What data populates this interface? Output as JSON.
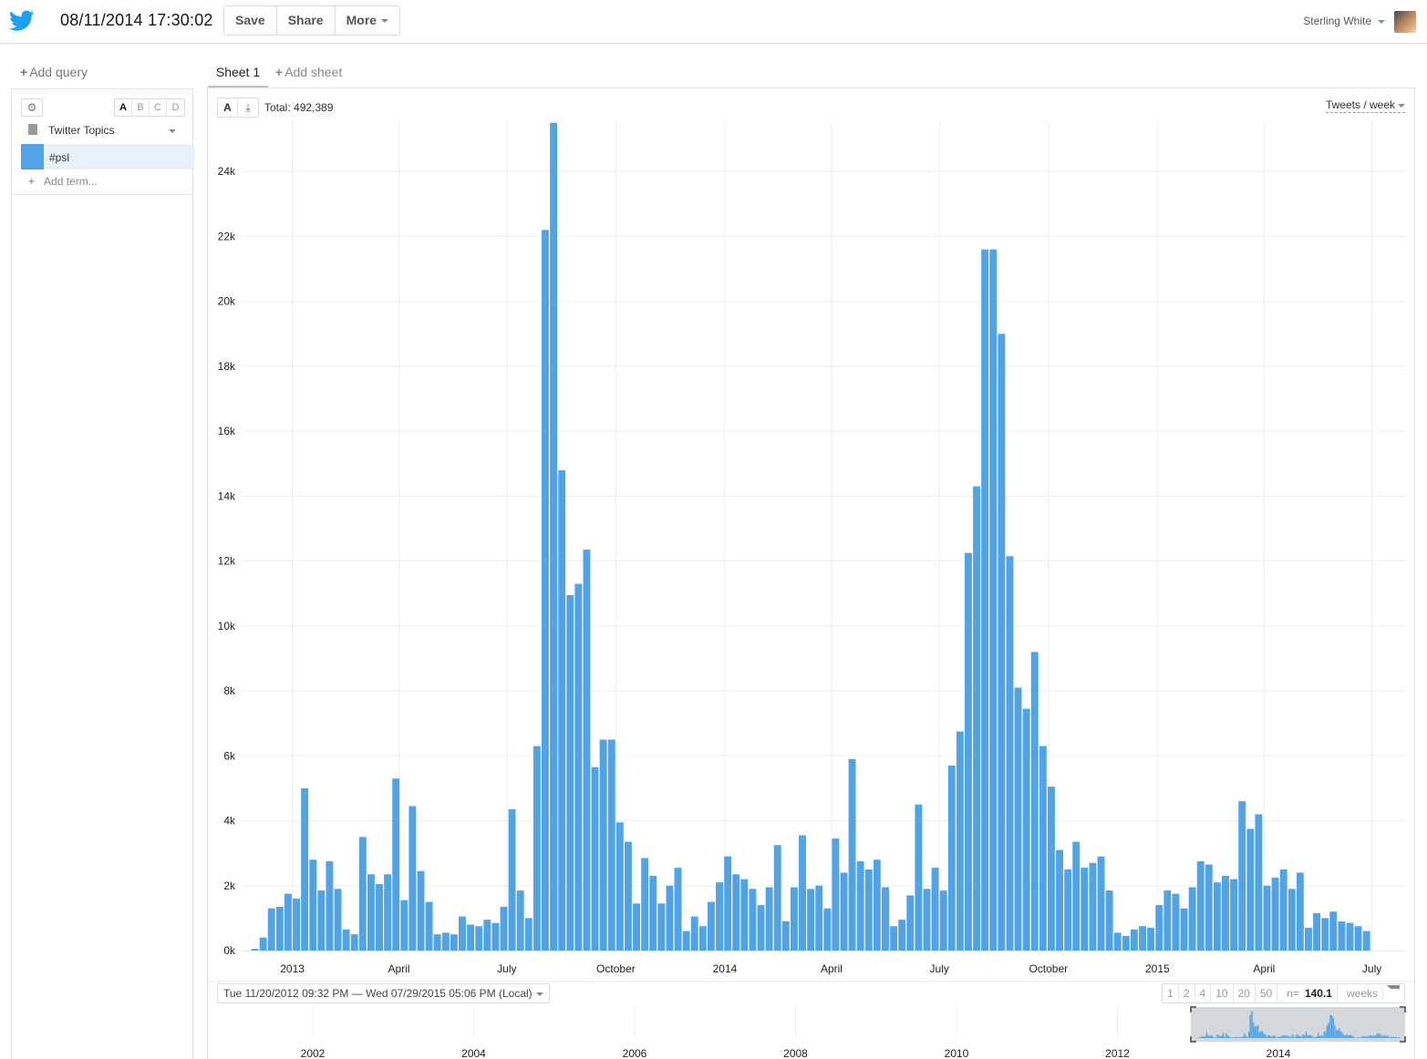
{
  "header": {
    "title": "08/11/2014 17:30:02",
    "buttons": {
      "save": "Save",
      "share": "Share",
      "more": "More"
    },
    "user_name": "Sterling White"
  },
  "sidebar": {
    "add_query": "Add query",
    "series_letters": [
      "A",
      "B",
      "C",
      "D"
    ],
    "topic": "Twitter Topics",
    "term": "#psl",
    "add_term": "Add term..."
  },
  "tabs": {
    "sheet": "Sheet 1",
    "add_sheet": "Add sheet"
  },
  "chart_header": {
    "series_letter": "A",
    "total": "Total: 492,389",
    "rate_label": "Tweets / week"
  },
  "range": {
    "label": "Tue 11/20/2012 09:32 PM — Wed 07/29/2015 05:06 PM (Local)",
    "bins": [
      "1",
      "2",
      "4",
      "10",
      "20",
      "50"
    ],
    "n_prefix": "n=",
    "n_value": "140.1",
    "unit": "weeks"
  },
  "colors": {
    "bar": "#4fa3e6",
    "accent": "#1da1f2"
  },
  "chart_data": {
    "type": "bar",
    "ylim": [
      0,
      26000
    ],
    "yticks": [
      0,
      2000,
      4000,
      6000,
      8000,
      10000,
      12000,
      14000,
      16000,
      18000,
      20000,
      22000,
      24000
    ],
    "ytick_labels": [
      "0k",
      "2k",
      "4k",
      "6k",
      "8k",
      "10k",
      "12k",
      "14k",
      "16k",
      "18k",
      "20k",
      "22k",
      "24k"
    ],
    "x_range": [
      "2012-11-20",
      "2015-07-29"
    ],
    "x_ticks": [
      {
        "date": "2013-01-01",
        "label": "2013"
      },
      {
        "date": "2013-04-01",
        "label": "April"
      },
      {
        "date": "2013-07-01",
        "label": "July"
      },
      {
        "date": "2013-10-01",
        "label": "October"
      },
      {
        "date": "2014-01-01",
        "label": "2014"
      },
      {
        "date": "2014-04-01",
        "label": "April"
      },
      {
        "date": "2014-07-01",
        "label": "July"
      },
      {
        "date": "2014-10-01",
        "label": "October"
      },
      {
        "date": "2015-01-01",
        "label": "2015"
      },
      {
        "date": "2015-04-01",
        "label": "April"
      },
      {
        "date": "2015-07-01",
        "label": "July"
      }
    ],
    "bin": "week",
    "series": [
      {
        "start": "2012-11-20",
        "values": [
          0,
          50,
          400,
          1300,
          1350,
          1750,
          1600,
          5000,
          2800,
          1850,
          2750,
          1900,
          650,
          500,
          3500,
          2350,
          2050,
          2350,
          5300,
          1550,
          4450,
          2450,
          1500,
          500,
          550,
          500,
          1050,
          800,
          750,
          950,
          850,
          1350,
          4350,
          1850,
          1000,
          6300,
          22200,
          25500,
          14800,
          10950,
          11300,
          12350,
          5650,
          6500,
          6500,
          3950,
          3350,
          1450,
          2850,
          2300,
          1450,
          2000,
          2550,
          600,
          1050,
          750,
          1500,
          2100,
          2900,
          2350,
          2200,
          1900,
          1400,
          1950,
          3250,
          900,
          1950,
          3550,
          1900,
          2000,
          1300,
          3450,
          2400,
          5900,
          2750,
          2500,
          2800,
          1950,
          750,
          950,
          1700,
          4500,
          1900,
          2550,
          1850,
          5700,
          6750,
          12250,
          14300,
          21600,
          21600,
          19000,
          12150,
          8100,
          7450,
          9200,
          6300,
          5050,
          3100,
          2500,
          3350,
          2550,
          2700,
          2900,
          1850,
          550,
          450,
          650,
          750,
          700,
          1400,
          1850,
          1750,
          1300,
          1950,
          2750,
          2650,
          2100,
          2300,
          2200,
          4600,
          3750,
          4200,
          2000,
          2250,
          2500,
          1900,
          2400,
          700,
          1150,
          1000,
          1200,
          900,
          850,
          750,
          600
        ]
      }
    ],
    "overview": {
      "x_ticks": [
        "2002",
        "2004",
        "2006",
        "2008",
        "2010",
        "2012",
        "2014"
      ]
    },
    "grid": true,
    "legend": "none"
  }
}
